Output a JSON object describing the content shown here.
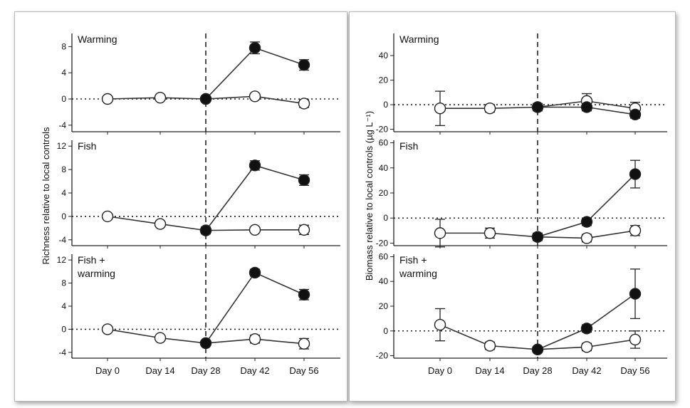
{
  "chart_data": [
    {
      "type": "line",
      "figure": "left",
      "ylabel": "Richness relative to local controls",
      "categories": [
        "Day 0",
        "Day 14",
        "Day 28",
        "Day 42",
        "Day 56"
      ],
      "reference_day": "Day 28",
      "panels": [
        {
          "label": "Warming",
          "ylim": [
            -5,
            10
          ],
          "yticks": [
            -4,
            0,
            4,
            8
          ],
          "series": [
            {
              "name": "filled",
              "filled": true,
              "x": [
                "Day 28",
                "Day 42",
                "Day 56"
              ],
              "values": [
                0,
                7.8,
                5.2
              ],
              "err": [
                0,
                0.9,
                0.8
              ]
            },
            {
              "name": "open",
              "filled": false,
              "x": [
                "Day 0",
                "Day 14",
                "Day 28",
                "Day 42",
                "Day 56"
              ],
              "values": [
                0,
                0.2,
                0,
                0.4,
                -0.7
              ],
              "err": [
                0,
                0,
                0,
                0,
                0.6
              ]
            }
          ]
        },
        {
          "label": "Fish",
          "ylim": [
            -5,
            13
          ],
          "yticks": [
            -4,
            0,
            4,
            8,
            12
          ],
          "series": [
            {
              "name": "filled",
              "filled": true,
              "x": [
                "Day 28",
                "Day 42",
                "Day 56"
              ],
              "values": [
                -2.4,
                8.7,
                6.2
              ],
              "err": [
                0,
                0.8,
                0.9
              ]
            },
            {
              "name": "open",
              "filled": false,
              "x": [
                "Day 0",
                "Day 14",
                "Day 28",
                "Day 42",
                "Day 56"
              ],
              "values": [
                0,
                -1.3,
                -2.4,
                -2.3,
                -2.3
              ],
              "err": [
                0,
                0,
                0.6,
                0.3,
                0.8
              ]
            }
          ]
        },
        {
          "label": "Fish + warming",
          "ylim": [
            -5,
            13
          ],
          "yticks": [
            -4,
            0,
            4,
            8,
            12
          ],
          "series": [
            {
              "name": "filled",
              "filled": true,
              "x": [
                "Day 28",
                "Day 42",
                "Day 56"
              ],
              "values": [
                -2.4,
                9.8,
                6.0
              ],
              "err": [
                0,
                0.6,
                0.9
              ]
            },
            {
              "name": "open",
              "filled": false,
              "x": [
                "Day 0",
                "Day 14",
                "Day 28",
                "Day 42",
                "Day 56"
              ],
              "values": [
                0,
                -1.5,
                -2.4,
                -1.7,
                -2.5
              ],
              "err": [
                0,
                0,
                0,
                0.7,
                0.9
              ]
            }
          ]
        }
      ]
    },
    {
      "type": "line",
      "figure": "right",
      "ylabel": "Biomass relative to local controls (µg L⁻¹)",
      "categories": [
        "Day 0",
        "Day 14",
        "Day 28",
        "Day 42",
        "Day 56"
      ],
      "reference_day": "Day 28",
      "panels": [
        {
          "label": "Warming",
          "ylim": [
            -22,
            58
          ],
          "yticks": [
            -20,
            0,
            20,
            40
          ],
          "series": [
            {
              "name": "filled",
              "filled": true,
              "x": [
                "Day 28",
                "Day 42",
                "Day 56"
              ],
              "values": [
                -2,
                -2,
                -8
              ],
              "err": [
                0,
                3,
                3
              ]
            },
            {
              "name": "open",
              "filled": false,
              "x": [
                "Day 0",
                "Day 14",
                "Day 28",
                "Day 42",
                "Day 56"
              ],
              "values": [
                -3,
                -3,
                -2,
                3,
                -3
              ],
              "err": [
                14,
                3,
                3,
                6,
                5
              ]
            }
          ]
        },
        {
          "label": "Fish",
          "ylim": [
            -22,
            62
          ],
          "yticks": [
            -20,
            0,
            20,
            40,
            60
          ],
          "series": [
            {
              "name": "filled",
              "filled": true,
              "x": [
                "Day 28",
                "Day 42",
                "Day 56"
              ],
              "values": [
                -15,
                -3,
                35
              ],
              "err": [
                0,
                3,
                11
              ]
            },
            {
              "name": "open",
              "filled": false,
              "x": [
                "Day 0",
                "Day 14",
                "Day 28",
                "Day 42",
                "Day 56"
              ],
              "values": [
                -12,
                -12,
                -15,
                -16,
                -10
              ],
              "err": [
                11,
                4,
                3,
                3,
                4
              ]
            }
          ]
        },
        {
          "label": "Fish + warming",
          "ylim": [
            -22,
            62
          ],
          "yticks": [
            -20,
            0,
            20,
            40,
            60
          ],
          "series": [
            {
              "name": "filled",
              "filled": true,
              "x": [
                "Day 28",
                "Day 42",
                "Day 56"
              ],
              "values": [
                -15,
                2,
                30
              ],
              "err": [
                0,
                3,
                20
              ]
            },
            {
              "name": "open",
              "filled": false,
              "x": [
                "Day 0",
                "Day 14",
                "Day 28",
                "Day 42",
                "Day 56"
              ],
              "values": [
                5,
                -12,
                -15,
                -13,
                -7
              ],
              "err": [
                13,
                3,
                2,
                3,
                7
              ]
            }
          ]
        }
      ]
    }
  ],
  "colors": {
    "axis": "#222222",
    "filled_marker": "#111111",
    "open_marker": "#ffffff",
    "line": "#333333",
    "frame": "#b9b9b9"
  }
}
